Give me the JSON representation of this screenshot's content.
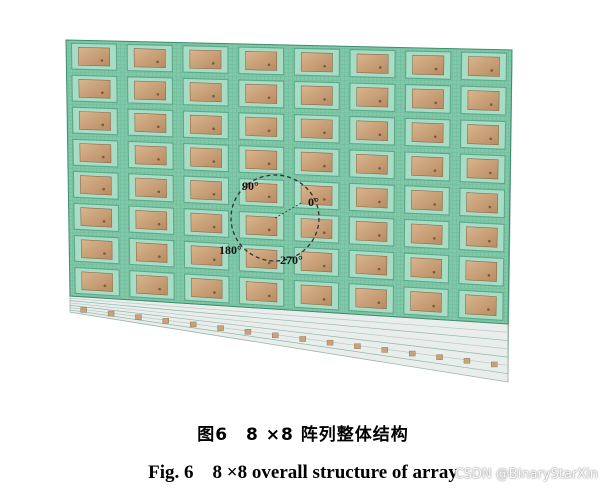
{
  "figure": {
    "array_rows": 8,
    "array_cols": 8,
    "angles": {
      "a90": "90°",
      "a0": "0°",
      "a180": "180°",
      "a270": "270°"
    },
    "colors": {
      "substrate_green": "#7fc9a8",
      "cell_frame": "#5aa98a",
      "patch_copper": "#c9a27a",
      "dashed_circle": "#333333"
    }
  },
  "caption": {
    "cn": "图6　8 ×8 阵列整体结构",
    "en": "Fig. 6　8 ×8 overall structure of array"
  },
  "watermark": "CSDN @BinaryStarXin"
}
